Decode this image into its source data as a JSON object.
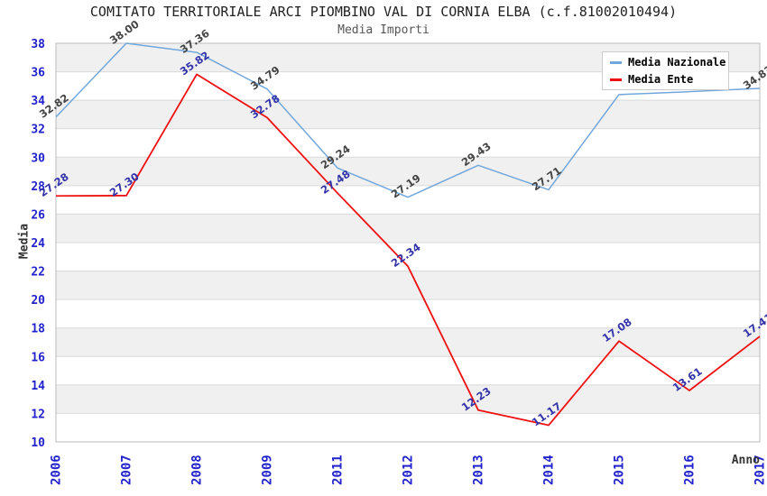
{
  "chart_data": {
    "type": "line",
    "title": "COMITATO TERRITORIALE ARCI PIOMBINO VAL DI CORNIA ELBA (c.f.81002010494)",
    "subtitle": "Media Importi",
    "xlabel": "Anno",
    "ylabel": "Media",
    "categories": [
      "2006",
      "2007",
      "2008",
      "2009",
      "2011",
      "2012",
      "2013",
      "2014",
      "2015",
      "2016",
      "2017"
    ],
    "ylim": [
      10,
      38
    ],
    "yticks": [
      10,
      12,
      14,
      16,
      18,
      20,
      22,
      24,
      26,
      28,
      30,
      32,
      34,
      36,
      38
    ],
    "grid": "horizontal-alternating-bands",
    "legend_position": "top-right",
    "series": [
      {
        "name": "Media Nazionale",
        "color": "#72a7dc",
        "label_color": "#444444",
        "values": [
          32.82,
          38.0,
          37.36,
          34.79,
          29.24,
          27.19,
          29.43,
          27.71,
          34.4,
          34.6,
          34.83
        ],
        "labels": [
          "32.82",
          "38.00",
          "37.36",
          "34.79",
          "29.24",
          "27.19",
          "29.43",
          "27.71",
          null,
          null,
          "34.83"
        ]
      },
      {
        "name": "Media Ente",
        "color": "#ee1111",
        "label_color": "#3333aa",
        "values": [
          27.28,
          27.3,
          35.82,
          32.78,
          27.48,
          22.34,
          12.23,
          11.17,
          17.08,
          13.61,
          17.41
        ],
        "labels": [
          "27.28",
          "27.30",
          "35.82",
          "32.78",
          "27.48",
          "22.34",
          "12.23",
          "11.17",
          "17.08",
          "13.61",
          "17.41"
        ]
      }
    ],
    "colors": {
      "tick_label": "#2222cc",
      "band_gray": "#f0f0f0",
      "grid_line": "#d9d9d9",
      "plot_border": "#bbbbbb"
    }
  }
}
